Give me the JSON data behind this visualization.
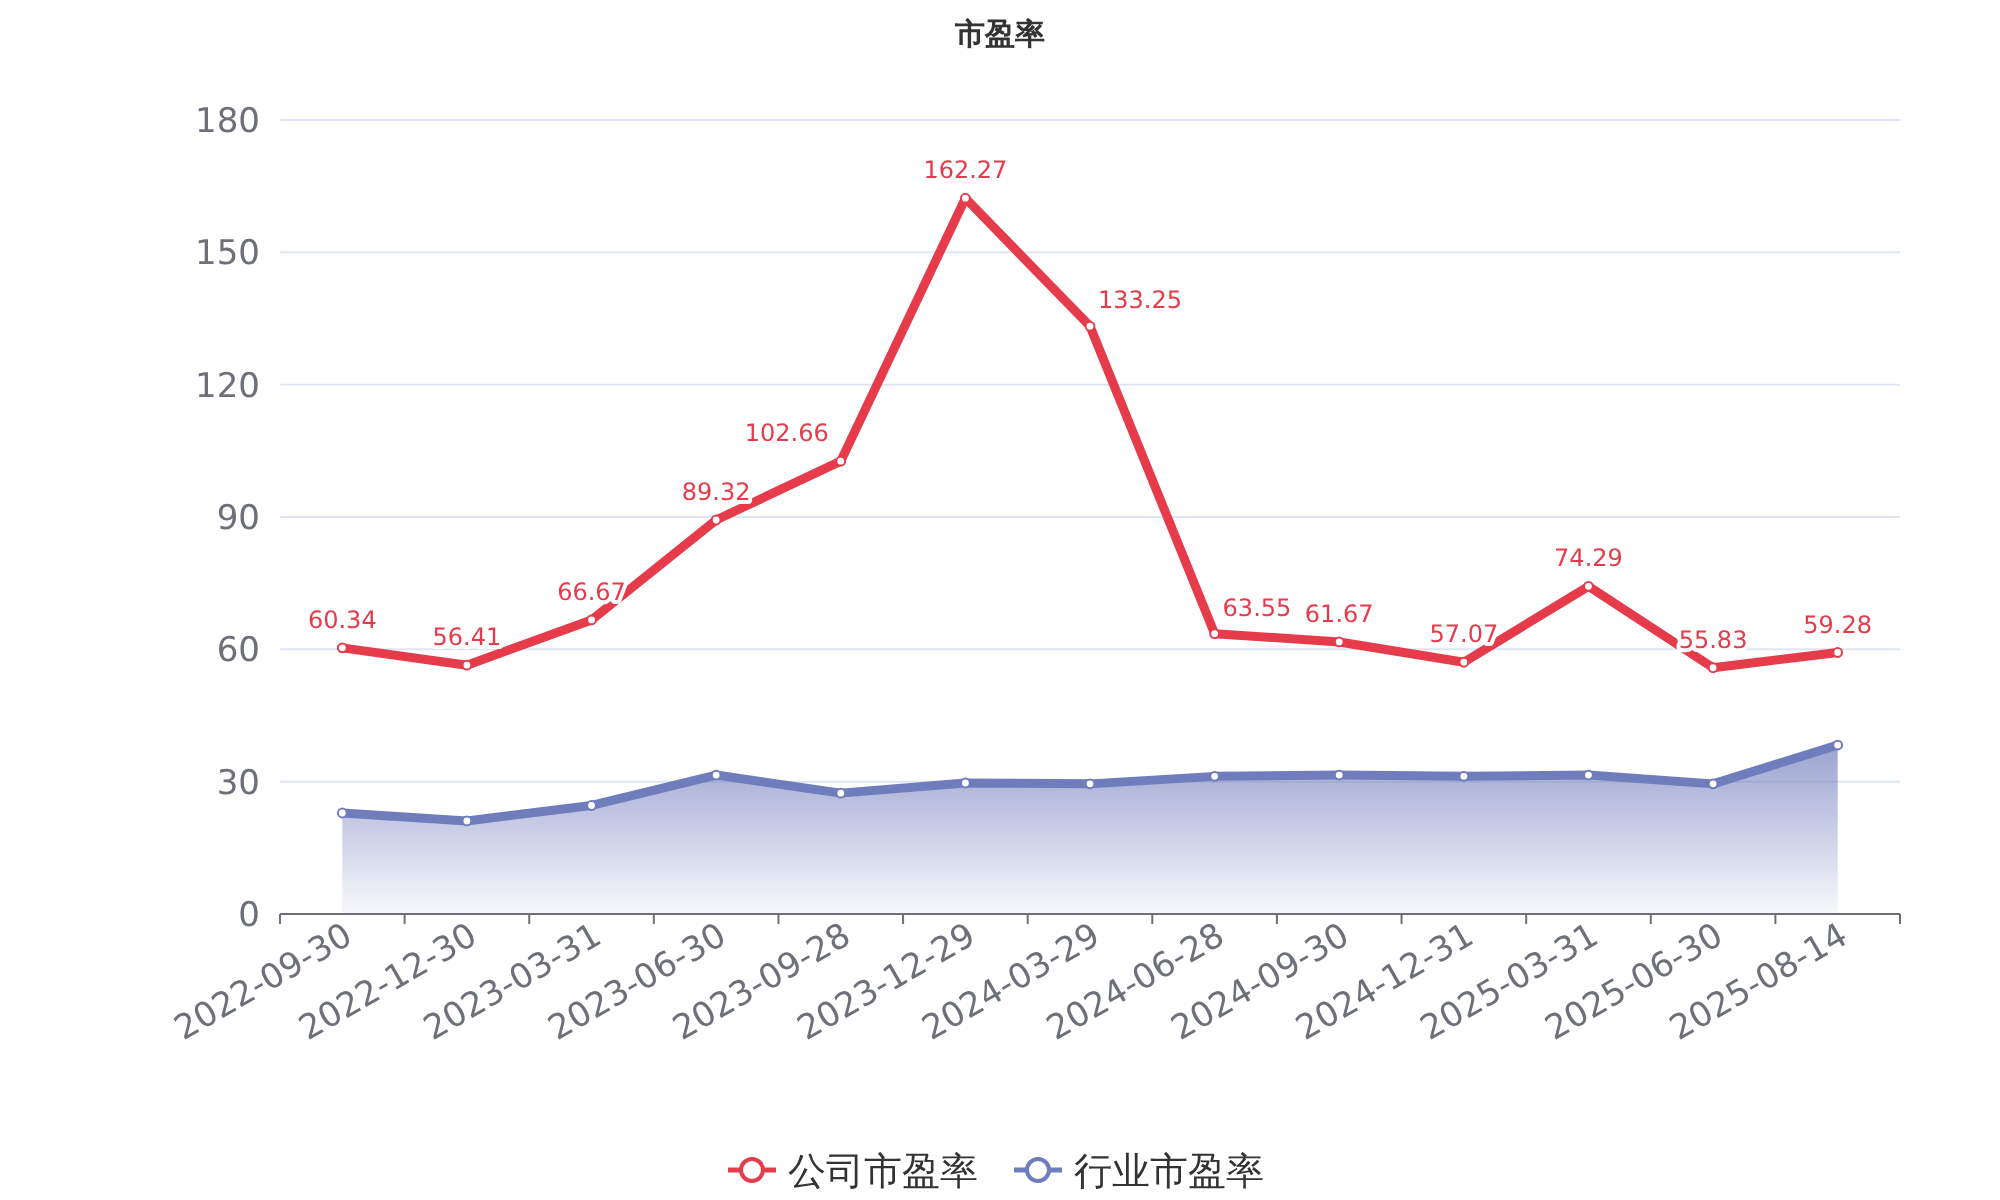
{
  "chart_data": {
    "type": "line",
    "title": "市盈率",
    "categories": [
      "2022-09-30",
      "2022-12-30",
      "2023-03-31",
      "2023-06-30",
      "2023-09-28",
      "2023-12-29",
      "2024-03-29",
      "2024-06-28",
      "2024-09-30",
      "2024-12-31",
      "2025-03-31",
      "2025-06-30",
      "2025-08-14"
    ],
    "series": [
      {
        "name": "公司市盈率",
        "color": "#e63b4b",
        "values": [
          60.34,
          56.41,
          66.67,
          89.32,
          102.66,
          162.27,
          133.25,
          63.55,
          61.67,
          57.07,
          74.29,
          55.83,
          59.28
        ],
        "value_labels": [
          "60.34",
          "56.41",
          "66.67",
          "89.32",
          "102.66",
          "162.27",
          "133.25",
          "63.55",
          "61.67",
          "57.07",
          "74.29",
          "55.83",
          "59.28"
        ]
      },
      {
        "name": "行业市盈率",
        "type": "area",
        "color": "#6f7dbd",
        "values": [
          22.9,
          21.1,
          24.6,
          31.5,
          27.4,
          29.7,
          29.5,
          31.2,
          31.5,
          31.2,
          31.5,
          29.5,
          38.3
        ]
      }
    ],
    "ylim": [
      0,
      180
    ],
    "yticks": [
      0,
      30,
      60,
      90,
      120,
      150,
      180
    ],
    "grid": "y",
    "legend": "bottom",
    "marker": "circle",
    "line_style": "solid"
  }
}
